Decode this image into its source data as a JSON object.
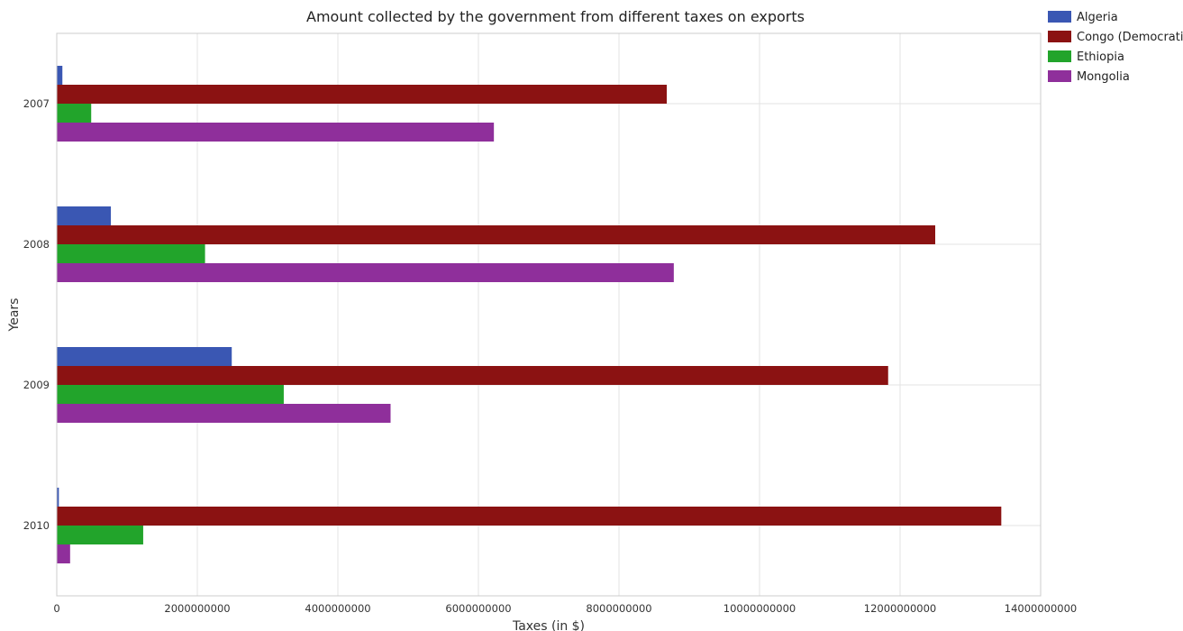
{
  "chart_data": {
    "type": "bar",
    "orientation": "horizontal",
    "title": "Amount collected by the government from different taxes on exports",
    "xlabel": "Taxes (in $)",
    "ylabel": "Years",
    "categories": [
      "2007",
      "2008",
      "2009",
      "2010"
    ],
    "series": [
      {
        "name": "Algeria",
        "color": "#3a57b3",
        "values": [
          80000000,
          770000000,
          2490000000,
          30000000
        ]
      },
      {
        "name": "Congo (Democratic)",
        "color": "#8b1212",
        "values": [
          8680000000,
          12500000000,
          11830000000,
          13440000000
        ]
      },
      {
        "name": "Ethiopia",
        "color": "#22a42b",
        "values": [
          490000000,
          2110000000,
          3230000000,
          1230000000
        ]
      },
      {
        "name": "Mongolia",
        "color": "#8f2f9b",
        "values": [
          6220000000,
          8780000000,
          4750000000,
          190000000
        ]
      }
    ],
    "xlim": [
      0,
      14000000000
    ],
    "xticks": [
      0,
      2000000000,
      4000000000,
      6000000000,
      8000000000,
      10000000000,
      12000000000,
      14000000000
    ],
    "xtick_labels": [
      "0",
      "2000000000",
      "4000000000",
      "6000000000",
      "8000000000",
      "10000000000",
      "12000000000",
      "14000000000"
    ],
    "grid": true,
    "legend_position": "top-right"
  }
}
